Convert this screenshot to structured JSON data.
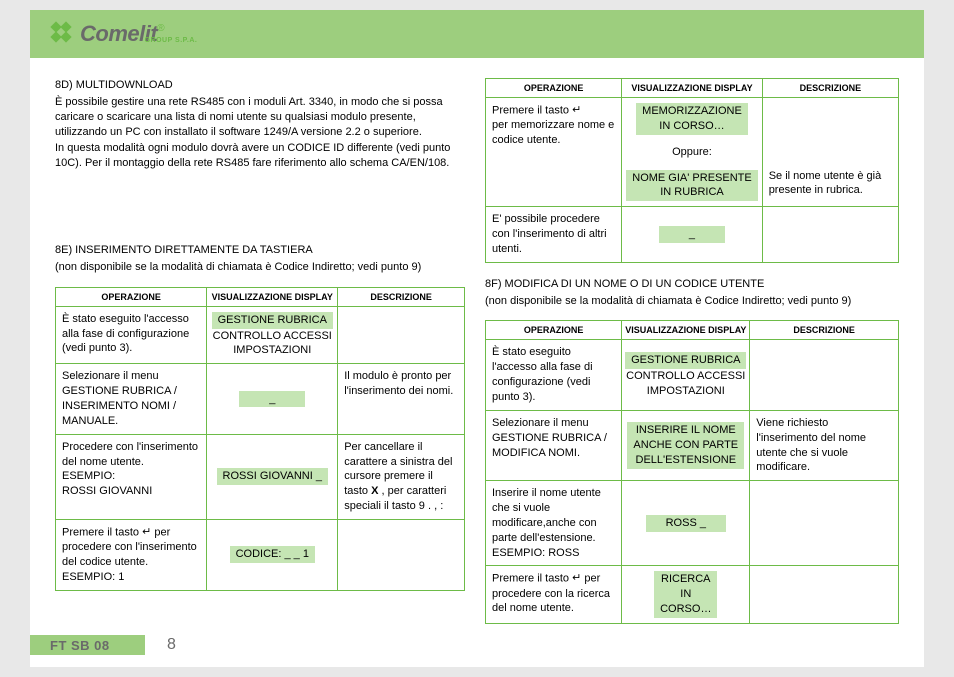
{
  "brand": {
    "name": "Comelit",
    "sub": "GROUP S.P.A."
  },
  "left": {
    "s1_title": "8D) MULTIDOWNLOAD",
    "s1_p1": "È possibile gestire una rete RS485 con i moduli Art. 3340, in modo che si possa caricare o scaricare una lista di nomi utente su qualsiasi modulo presente, utilizzando un PC con installato il software 1249/A versione 2.2 o superiore.",
    "s1_p2": "In questa modalità ogni modulo dovrà avere un CODICE ID differente (vedi punto 10C). Per il montaggio della rete RS485 fare riferimento allo schema CA/EN/108.",
    "s2_title": "8E) INSERIMENTO DIRETTAMENTE DA TASTIERA",
    "s2_sub": "(non disponibile se la modalità di chiamata è Codice Indiretto; vedi punto 9)",
    "headers": {
      "op": "OPERAZIONE",
      "disp": "VISUALIZZAZIONE DISPLAY",
      "desc": "DESCRIZIONE"
    },
    "t1": [
      {
        "op": "È stato eseguito l'accesso alla fase di configurazione (vedi punto 3).",
        "disp_hl": "GESTIONE RUBRICA",
        "disp_rest": "CONTROLLO ACCESSI\nIMPOSTAZIONI",
        "desc": ""
      },
      {
        "op": "Selezionare il menu GESTIONE RUBRICA / INSERIMENTO NOMI / MANUALE.",
        "disp_hl": "_",
        "desc": "Il modulo è pronto per l'inserimento dei nomi."
      },
      {
        "op": "Procedere con l'inserimento\ndel nome utente.\nESEMPIO:\nROSSI GIOVANNI",
        "disp_hl": "ROSSI GIOVANNI _",
        "desc": "Per cancellare il carattere a sinistra del cursore premere il tasto X , per caratteri speciali il tasto  9 . , :"
      },
      {
        "op_prefix": "Premere il tasto ",
        "op_suffix": "  per procedere con l'inserimento del codice utente.\nESEMPIO: 1",
        "disp_hl": "CODICE: _ _ 1",
        "desc": ""
      }
    ]
  },
  "right": {
    "headers": {
      "op": "OPERAZIONE",
      "disp": "VISUALIZZAZIONE DISPLAY",
      "desc": "DESCRIZIONE"
    },
    "t2": [
      {
        "op_prefix": "Premere il tasto ",
        "op_suffix": "\nper memorizzare nome e codice utente.",
        "disp_hl1": "MEMORIZZAZIONE\nIN CORSO…",
        "disp_mid": "Oppure:",
        "disp_hl2": "NOME GIA' PRESENTE\nIN RUBRICA",
        "desc": "Se il nome utente è già presente in rubrica."
      },
      {
        "op": "E' possibile procedere con l'inserimento di altri utenti.",
        "disp_hl": "_",
        "desc": ""
      }
    ],
    "s3_title": "8F) MODIFICA DI UN NOME O DI UN CODICE UTENTE",
    "s3_sub": "(non disponibile se la modalità di chiamata è Codice Indiretto; vedi punto 9)",
    "t3": [
      {
        "op": "È stato eseguito l'accesso alla fase di configurazione (vedi punto 3).",
        "disp_hl": "GESTIONE RUBRICA",
        "disp_rest": "CONTROLLO ACCESSI\nIMPOSTAZIONI",
        "desc": ""
      },
      {
        "op": "Selezionare il menu GESTIONE RUBRICA / MODIFICA NOMI.",
        "disp_hl": "INSERIRE IL NOME\nANCHE CON PARTE\nDELL'ESTENSIONE",
        "desc": "Viene richiesto l'inserimento del nome utente che si vuole modificare."
      },
      {
        "op": "Inserire il nome utente che si vuole modificare,anche con parte dell'estensione.\nESEMPIO: ROSS",
        "disp_hl": "ROSS _",
        "desc": ""
      },
      {
        "op_prefix": "Premere il tasto ",
        "op_suffix": "  per procedere con la ricerca del nome utente.",
        "disp_hl": "RICERCA\nIN\nCORSO…",
        "desc": ""
      }
    ]
  },
  "footer": {
    "code": "FT SB 08",
    "page": "8"
  }
}
